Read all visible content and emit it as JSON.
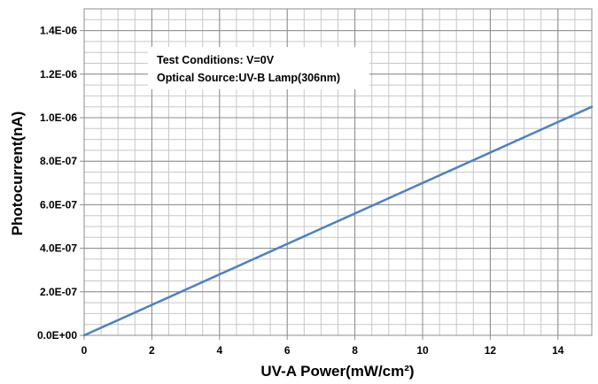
{
  "chart_data": {
    "type": "line",
    "title": "",
    "xlabel": "UV-A Power(mW/cm²)",
    "ylabel": "Photocurrent(nA)",
    "xlim": [
      0,
      15
    ],
    "ylim": [
      0,
      1.5e-06
    ],
    "x_ticks": [
      0,
      2,
      4,
      6,
      8,
      10,
      12,
      14
    ],
    "x_tick_labels": [
      "0",
      "2",
      "4",
      "6",
      "8",
      "10",
      "12",
      "14"
    ],
    "y_ticks": [
      0,
      2e-07,
      4e-07,
      6e-07,
      8e-07,
      1e-06,
      1.2e-06,
      1.4e-06
    ],
    "y_tick_labels": [
      "0.0E+00",
      "2.0E-07",
      "4.0E-07",
      "6.0E-07",
      "8.0E-07",
      "1.0E-06",
      "1.2E-06",
      "1.4E-06"
    ],
    "grid": true,
    "x_minor_step": 0.5,
    "y_minor_step": 5e-08,
    "annotation": [
      "Test Conditions: V=0V",
      "Optical Source:UV-B Lamp(306nm)"
    ],
    "series": [
      {
        "x": [
          0,
          15
        ],
        "y": [
          0,
          1.05e-06
        ],
        "color": "#4f81bd"
      }
    ]
  }
}
